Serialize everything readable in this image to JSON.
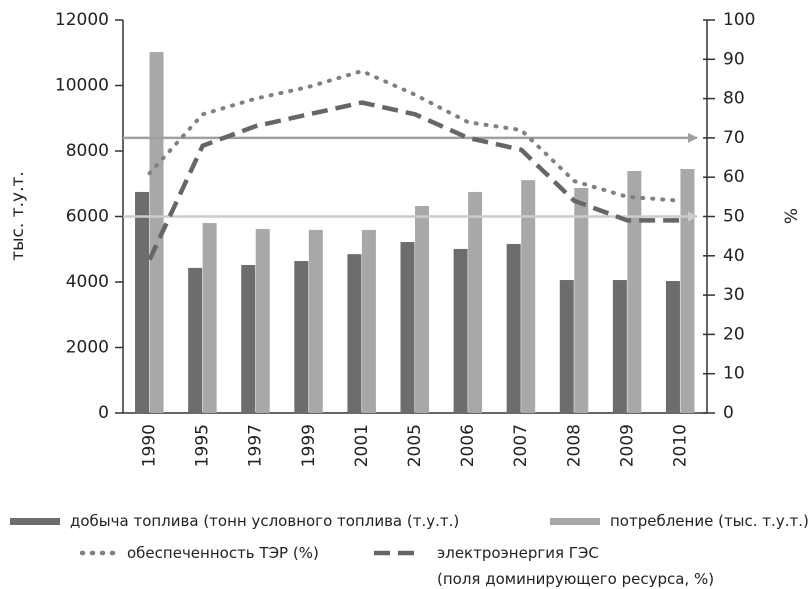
{
  "chart_data": {
    "type": "bar",
    "categories": [
      "1990",
      "1995",
      "1997",
      "1999",
      "2001",
      "2005",
      "2006",
      "2007",
      "2008",
      "2009",
      "2010"
    ],
    "ylabel": "тыс. т.у.т.",
    "y2label": "%",
    "ylim": [
      0,
      12000
    ],
    "yticks": [
      0,
      2000,
      4000,
      6000,
      8000,
      10000,
      12000
    ],
    "y2lim": [
      0,
      100
    ],
    "y2ticks": [
      0,
      10,
      20,
      30,
      40,
      50,
      60,
      70,
      80,
      90,
      100
    ],
    "series": [
      {
        "name": "добыча топлива (тонн условного топлива (т.у.т.)",
        "type": "bar",
        "color": "#6d6d6d",
        "values": [
          6750,
          4430,
          4520,
          4640,
          4850,
          5220,
          5010,
          5160,
          4060,
          4060,
          4030
        ]
      },
      {
        "name": "потребление (тыс. т.у.т.)",
        "type": "bar",
        "color": "#a8a8a8",
        "values": [
          11020,
          5800,
          5620,
          5590,
          5590,
          6320,
          6750,
          7110,
          6870,
          7390,
          7450
        ]
      },
      {
        "name": "обеспеченность ТЭР (%)",
        "type": "line",
        "style": "dotted",
        "axis": "y2",
        "color": "#808080",
        "values": [
          61,
          76,
          80,
          83,
          87,
          81,
          74,
          72,
          59,
          55,
          54
        ]
      },
      {
        "name": "электроэнергия ГЭС\n(поля доминирующего ресурса, %)",
        "type": "line",
        "style": "dashed",
        "axis": "y2",
        "color": "#666666",
        "values": [
          39,
          68,
          73,
          76,
          79,
          76,
          70,
          67,
          54,
          49,
          49
        ]
      }
    ],
    "reference_lines": [
      {
        "value": 70,
        "axis": "y2",
        "color": "#a0a0a0"
      },
      {
        "value": 50,
        "axis": "y2",
        "color": "#cccccc"
      }
    ]
  }
}
